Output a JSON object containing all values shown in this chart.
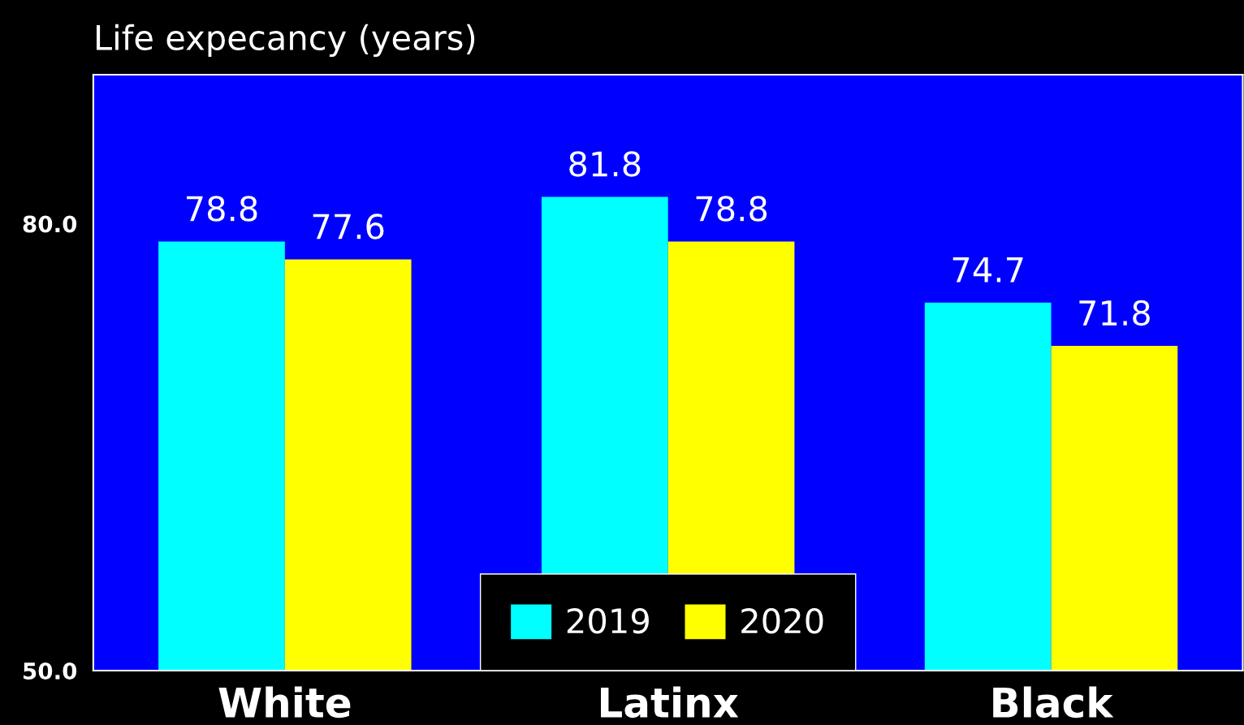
{
  "chart_data": {
    "type": "bar",
    "title": "Life expecancy (years)",
    "categories": [
      "White",
      "Latinx",
      "Black"
    ],
    "series": [
      {
        "name": "2019",
        "color": "#00ffff",
        "values": [
          78.8,
          81.8,
          74.7
        ]
      },
      {
        "name": "2020",
        "color": "#ffff00",
        "values": [
          77.6,
          78.8,
          71.8
        ]
      }
    ],
    "ylim": [
      50,
      90
    ],
    "yticks": [
      {
        "value": 50,
        "label": "50.0"
      },
      {
        "value": 80,
        "label": "80.0"
      }
    ],
    "data_labels": true,
    "grid": false,
    "legend": "bottom"
  }
}
